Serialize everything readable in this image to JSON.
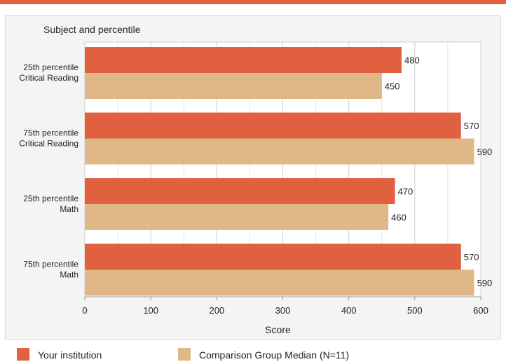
{
  "chart_data": {
    "type": "bar",
    "orientation": "horizontal",
    "ylabel": "Subject and percentile",
    "xlabel": "Score",
    "xlim": [
      0,
      600
    ],
    "xticks": [
      0,
      100,
      200,
      300,
      400,
      500,
      600
    ],
    "grid": true,
    "legend_position": "bottom",
    "categories": [
      [
        "25th percentile",
        "Critical Reading"
      ],
      [
        "75th percentile",
        "Critical Reading"
      ],
      [
        "25th percentile",
        "Math"
      ],
      [
        "75th percentile",
        "Math"
      ]
    ],
    "series": [
      {
        "name": "Your institution",
        "color": "#e06040",
        "values": [
          480,
          570,
          470,
          570
        ]
      },
      {
        "name": "Comparison Group Median (N=11)",
        "color": "#e0b888",
        "values": [
          450,
          590,
          460,
          590
        ]
      }
    ]
  },
  "colors": {
    "accent_bar": "#e06040",
    "panel_background": "#f4f4f4"
  }
}
